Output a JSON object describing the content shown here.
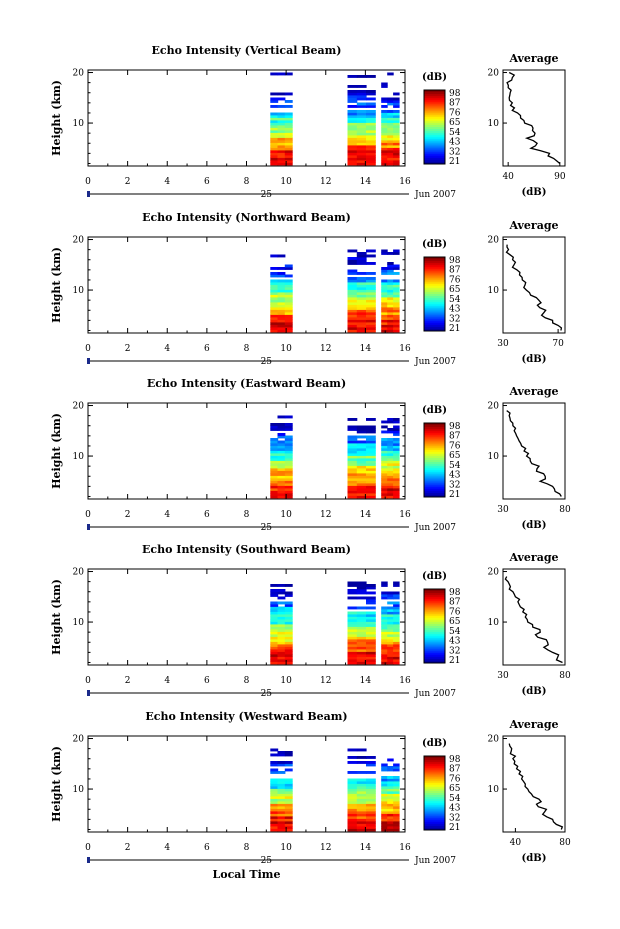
{
  "figure": {
    "xlabel": "Local Time",
    "date_label": "Jun 2007",
    "day_label": "25",
    "colorbar_unit": "(dB)",
    "avg_unit": "(dB)",
    "avg_title": "Average",
    "ylabel": "Height (km)"
  },
  "chart_data": [
    {
      "type": "heatmap",
      "title": "Echo Intensity (Vertical Beam)",
      "xlabel": "Local Time",
      "ylabel": "Height (km)",
      "xlim": [
        0,
        16
      ],
      "ylim": [
        1.5,
        20.5
      ],
      "xticks": [
        "0",
        "2",
        "4",
        "6",
        "8",
        "10",
        "12",
        "14",
        "16"
      ],
      "yticks": [
        "10",
        "20"
      ],
      "colorbar_ticks": [
        "98",
        "87",
        "76",
        "65",
        "54",
        "43",
        "32",
        "21"
      ],
      "colorbar_range": [
        21,
        98
      ],
      "time_blocks": [
        [
          9.2,
          10.3
        ],
        [
          13.1,
          14.5
        ],
        [
          14.8,
          15.7
        ]
      ],
      "echo_top_km": 20,
      "average_profile": {
        "title": "Average",
        "xlim": [
          35,
          95
        ],
        "xticks": [
          "40",
          "90"
        ],
        "yticks": [
          "10",
          "20"
        ],
        "heights_km": [
          2,
          3,
          4,
          5,
          6,
          7,
          8,
          9,
          10,
          11,
          12,
          13,
          14,
          15,
          16,
          17,
          18,
          19,
          20
        ],
        "values_db": [
          90,
          84,
          80,
          62,
          68,
          58,
          66,
          64,
          56,
          52,
          49,
          46,
          44,
          41,
          42,
          40,
          39,
          44,
          41
        ]
      }
    },
    {
      "type": "heatmap",
      "title": "Echo Intensity (Northward Beam)",
      "xlabel": "Local Time",
      "ylabel": "Height (km)",
      "xlim": [
        0,
        16
      ],
      "ylim": [
        1.5,
        20.5
      ],
      "xticks": [
        "0",
        "2",
        "4",
        "6",
        "8",
        "10",
        "12",
        "14",
        "16"
      ],
      "yticks": [
        "10",
        "20"
      ],
      "colorbar_ticks": [
        "98",
        "87",
        "76",
        "65",
        "54",
        "43",
        "32",
        "21"
      ],
      "colorbar_range": [
        21,
        98
      ],
      "time_blocks": [
        [
          9.2,
          10.3
        ],
        [
          13.1,
          14.5
        ],
        [
          14.8,
          15.7
        ]
      ],
      "echo_top_km": 18,
      "average_profile": {
        "title": "Average",
        "xlim": [
          30,
          75
        ],
        "xticks": [
          "30",
          "70"
        ],
        "yticks": [
          "10",
          "20"
        ],
        "heights_km": [
          2,
          3,
          4,
          5,
          6,
          7,
          8,
          9,
          10,
          11,
          12,
          13,
          14,
          15,
          16,
          17,
          18,
          19
        ],
        "values_db": [
          72,
          70,
          66,
          58,
          61,
          55,
          56,
          50,
          47,
          46,
          44,
          42,
          40,
          38,
          37,
          35,
          34,
          33
        ]
      }
    },
    {
      "type": "heatmap",
      "title": "Echo Intensity (Eastward Beam)",
      "xlabel": "Local Time",
      "ylabel": "Height (km)",
      "xlim": [
        0,
        16
      ],
      "ylim": [
        1.5,
        20.5
      ],
      "xticks": [
        "0",
        "2",
        "4",
        "6",
        "8",
        "10",
        "12",
        "14",
        "16"
      ],
      "yticks": [
        "10",
        "20"
      ],
      "colorbar_ticks": [
        "98",
        "87",
        "76",
        "65",
        "54",
        "43",
        "32",
        "21"
      ],
      "colorbar_range": [
        21,
        98
      ],
      "time_blocks": [
        [
          9.2,
          10.3
        ],
        [
          13.1,
          14.5
        ],
        [
          14.8,
          15.7
        ]
      ],
      "echo_top_km": 18,
      "average_profile": {
        "title": "Average",
        "xlim": [
          30,
          80
        ],
        "xticks": [
          "30",
          "80"
        ],
        "yticks": [
          "10",
          "20"
        ],
        "heights_km": [
          2,
          3,
          4,
          5,
          6,
          7,
          8,
          9,
          10,
          11,
          12,
          13,
          14,
          15,
          16,
          17,
          18,
          19
        ],
        "values_db": [
          77,
          72,
          70,
          60,
          64,
          57,
          59,
          52,
          49,
          47,
          45,
          43,
          41,
          39,
          38,
          36,
          35,
          33
        ]
      }
    },
    {
      "type": "heatmap",
      "title": "Echo Intensity (Southward Beam)",
      "xlabel": "Local Time",
      "ylabel": "Height (km)",
      "xlim": [
        0,
        16
      ],
      "ylim": [
        1.5,
        20.5
      ],
      "xticks": [
        "0",
        "2",
        "4",
        "6",
        "8",
        "10",
        "12",
        "14",
        "16"
      ],
      "yticks": [
        "10",
        "20"
      ],
      "colorbar_ticks": [
        "98",
        "87",
        "76",
        "65",
        "54",
        "43",
        "32",
        "21"
      ],
      "colorbar_range": [
        21,
        98
      ],
      "time_blocks": [
        [
          9.2,
          10.3
        ],
        [
          13.1,
          14.5
        ],
        [
          14.8,
          15.7
        ]
      ],
      "echo_top_km": 18,
      "average_profile": {
        "title": "Average",
        "xlim": [
          30,
          80
        ],
        "xticks": [
          "30",
          "80"
        ],
        "yticks": [
          "10",
          "20"
        ],
        "heights_km": [
          2,
          3,
          4,
          5,
          6,
          7,
          8,
          9,
          10,
          11,
          12,
          13,
          14,
          15,
          16,
          17,
          18,
          19
        ],
        "values_db": [
          78,
          74,
          70,
          63,
          66,
          58,
          60,
          54,
          50,
          48,
          46,
          44,
          42,
          40,
          38,
          36,
          34,
          33
        ]
      }
    },
    {
      "type": "heatmap",
      "title": "Echo Intensity (Westward Beam)",
      "xlabel": "Local Time",
      "ylabel": "Height (km)",
      "xlim": [
        0,
        16
      ],
      "ylim": [
        1.5,
        20.5
      ],
      "xticks": [
        "0",
        "2",
        "4",
        "6",
        "8",
        "10",
        "12",
        "14",
        "16"
      ],
      "yticks": [
        "10",
        "20"
      ],
      "colorbar_ticks": [
        "98",
        "87",
        "76",
        "65",
        "54",
        "43",
        "32",
        "21"
      ],
      "colorbar_range": [
        21,
        98
      ],
      "time_blocks": [
        [
          9.2,
          10.3
        ],
        [
          13.1,
          14.5
        ],
        [
          14.8,
          15.7
        ]
      ],
      "echo_top_km": 18,
      "average_profile": {
        "title": "Average",
        "xlim": [
          30,
          80
        ],
        "xticks": [
          "40",
          "80"
        ],
        "yticks": [
          "10",
          "20"
        ],
        "heights_km": [
          2,
          3,
          4,
          5,
          6,
          7,
          8,
          9,
          10,
          11,
          12,
          13,
          14,
          15,
          16,
          17,
          18,
          19
        ],
        "values_db": [
          77,
          73,
          70,
          62,
          65,
          57,
          59,
          53,
          50,
          48,
          45,
          43,
          41,
          39,
          38,
          36,
          37,
          35
        ]
      }
    }
  ]
}
